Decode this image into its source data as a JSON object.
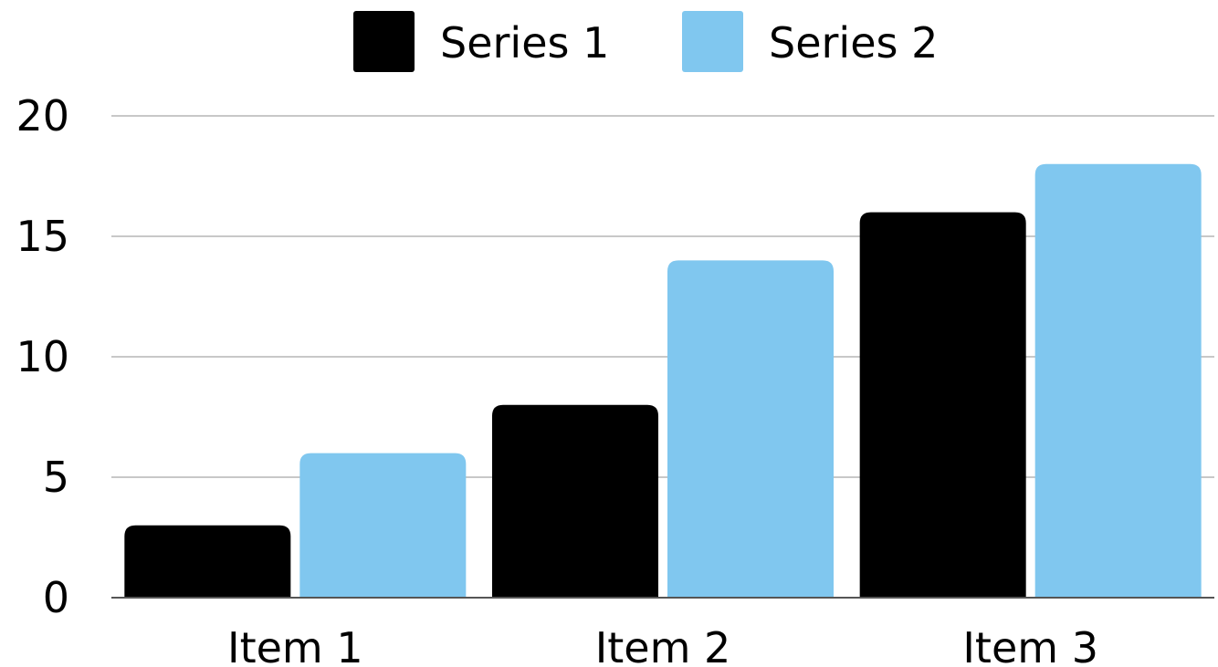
{
  "chart_data": {
    "type": "bar",
    "categories": [
      "Item 1",
      "Item 2",
      "Item 3"
    ],
    "series": [
      {
        "name": "Series 1",
        "values": [
          3,
          8,
          16
        ],
        "color": "#000000"
      },
      {
        "name": "Series 2",
        "values": [
          6,
          14,
          18
        ],
        "color": "#80C7EF"
      }
    ],
    "title": "",
    "xlabel": "",
    "ylabel": "",
    "ylim": [
      0,
      20
    ],
    "yticks": [
      0,
      5,
      10,
      15,
      20
    ],
    "grid": true,
    "legend": "top-center"
  }
}
